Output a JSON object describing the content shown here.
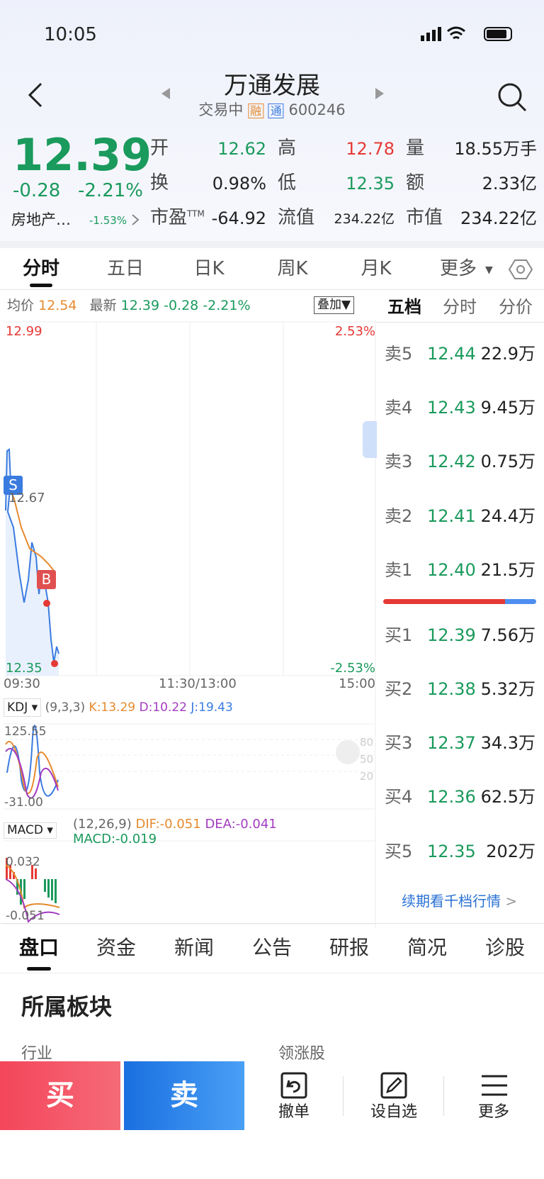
{
  "status_bar": {
    "time": "10:05"
  },
  "header": {
    "title": "万通发展",
    "status": "交易中",
    "tags": [
      "融",
      "通"
    ],
    "code": "600246"
  },
  "quote": {
    "price": "12.39",
    "change": "-0.28",
    "pct": "-2.21%",
    "sector": "房地产…",
    "sector_pct": "-1.53%",
    "stats": [
      {
        "label": "开",
        "value": "12.62"
      },
      {
        "label": "高",
        "value": "12.78"
      },
      {
        "label": "量",
        "value": "18.55万手"
      },
      {
        "label": "换",
        "value": "0.98%"
      },
      {
        "label": "低",
        "value": "12.35"
      },
      {
        "label": "额",
        "value": "2.33亿"
      },
      {
        "label": "市盈",
        "sup": "TTM",
        "value": "-64.92"
      },
      {
        "label": "流值",
        "value": "234.22亿"
      },
      {
        "label": "市值",
        "value": "234.22亿"
      }
    ]
  },
  "tabs": [
    "分时",
    "五日",
    "日K",
    "周K",
    "月K",
    "更多"
  ],
  "info": {
    "avg_label": "均价",
    "avg": "12.54",
    "latest_label": "最新",
    "latest": "12.39",
    "change": "-0.28",
    "pct": "-2.21%",
    "overlay": "叠加"
  },
  "chart": {
    "high": "12.99",
    "high_pct": "2.53%",
    "mid": "12.67",
    "low": "12.35",
    "low_pct": "-2.53%",
    "times": [
      "09:30",
      "11:30/13:00",
      "15:00"
    ],
    "sell_marker": "S",
    "buy_marker": "B"
  },
  "kdj": {
    "name": "KDJ",
    "params": "(9,3,3)",
    "k": "K:13.29",
    "d": "D:10.22",
    "j": "J:19.43",
    "top": "125.55",
    "bottom": "-31.00",
    "levels": [
      "80",
      "50",
      "20"
    ]
  },
  "macd": {
    "name": "MACD",
    "params": "(12,26,9)",
    "dif": "DIF:-0.051",
    "dea": "DEA:-0.041",
    "macd": "MACD:-0.019",
    "top": "0.032",
    "bottom": "-0.051"
  },
  "order_book": {
    "tabs": [
      "五档",
      "分时",
      "分价"
    ],
    "sells": [
      {
        "label": "卖5",
        "price": "12.44",
        "volume": "22.9万"
      },
      {
        "label": "卖4",
        "price": "12.43",
        "volume": "9.45万"
      },
      {
        "label": "卖3",
        "price": "12.42",
        "volume": "0.75万"
      },
      {
        "label": "卖2",
        "price": "12.41",
        "volume": "24.4万"
      },
      {
        "label": "卖1",
        "price": "12.40",
        "volume": "21.5万"
      }
    ],
    "buys": [
      {
        "label": "买1",
        "price": "12.39",
        "volume": "7.56万"
      },
      {
        "label": "买2",
        "price": "12.38",
        "volume": "5.32万"
      },
      {
        "label": "买3",
        "price": "12.37",
        "volume": "34.3万"
      },
      {
        "label": "买4",
        "price": "12.36",
        "volume": "62.5万"
      },
      {
        "label": "买5",
        "price": "12.35",
        "volume": "202万"
      }
    ],
    "more": "续期看千档行情"
  },
  "bottom_tabs": [
    "盘口",
    "资金",
    "新闻",
    "公告",
    "研报",
    "简况",
    "诊股"
  ],
  "section": {
    "title": "所属板块",
    "col1": "行业",
    "col2": "领涨股"
  },
  "actions": {
    "buy": "买",
    "sell": "卖",
    "buttons": [
      "撤单",
      "设自选",
      "更多"
    ]
  }
}
